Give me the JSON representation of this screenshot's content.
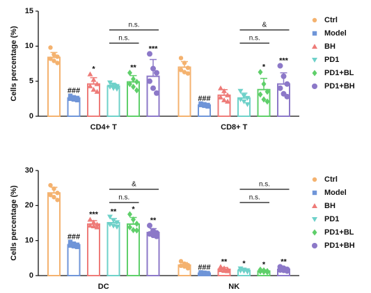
{
  "chart_data": [
    {
      "type": "bar",
      "ylabel": "Cells percentage (%)",
      "categories": [
        "CD4+ T",
        "CD8+ T"
      ],
      "ylim": [
        0,
        15
      ],
      "yticks": [
        0,
        5,
        10,
        15
      ],
      "legend": "right",
      "series": [
        {
          "name": "Ctrl",
          "color": "#f4b26f",
          "marker": "circle",
          "values": [
            8.4,
            7.0
          ],
          "errors": [
            0.7,
            0.8
          ],
          "points": [
            [
              9.8,
              8.8,
              8.5,
              8.2,
              7.9,
              7.6
            ],
            [
              8.3,
              7.6,
              6.9,
              6.6,
              6.3,
              6.1
            ]
          ],
          "significance": [
            null,
            null
          ]
        },
        {
          "name": "Model",
          "color": "#6f95d8",
          "marker": "square",
          "values": [
            2.6,
            1.6
          ],
          "errors": [
            0.2,
            0.1
          ],
          "points": [
            [
              2.9,
              2.7,
              2.6,
              2.5,
              2.4,
              2.3
            ],
            [
              1.8,
              1.7,
              1.6,
              1.6,
              1.5,
              1.4
            ]
          ],
          "significance": [
            "###",
            "###"
          ]
        },
        {
          "name": "BH",
          "color": "#ee7b78",
          "marker": "triangle-up",
          "values": [
            4.6,
            3.0
          ],
          "errors": [
            0.9,
            0.8
          ],
          "points": [
            [
              6.0,
              5.2,
              4.6,
              4.3,
              3.8,
              3.5
            ],
            [
              4.0,
              3.6,
              3.0,
              2.7,
              2.3,
              2.1
            ]
          ],
          "significance": [
            "*",
            null
          ]
        },
        {
          "name": "PD1",
          "color": "#6ed1c9",
          "marker": "triangle-down",
          "values": [
            4.3,
            2.6
          ],
          "errors": [
            0.3,
            0.7
          ],
          "points": [
            [
              4.8,
              4.5,
              4.3,
              4.2,
              4.0,
              3.9
            ],
            [
              3.6,
              2.9,
              2.6,
              2.4,
              2.1,
              1.7
            ]
          ],
          "significance": [
            null,
            null
          ]
        },
        {
          "name": "PD1+BL",
          "color": "#5fcf6a",
          "marker": "diamond",
          "values": [
            4.9,
            3.8
          ],
          "errors": [
            0.9,
            1.6
          ],
          "points": [
            [
              6.2,
              5.3,
              4.9,
              4.6,
              4.2,
              3.7
            ],
            [
              6.3,
              4.6,
              3.5,
              3.1,
              2.4,
              2.1
            ]
          ],
          "significance": [
            "**",
            "*"
          ]
        },
        {
          "name": "PD1+BH",
          "color": "#8c78c8",
          "marker": "big-circle",
          "values": [
            5.7,
            4.6
          ],
          "errors": [
            2.4,
            1.6
          ],
          "points": [
            [
              8.9,
              6.8,
              6.2,
              5.0,
              4.0,
              3.3
            ],
            [
              7.2,
              5.7,
              4.6,
              4.0,
              3.2,
              2.8
            ]
          ],
          "significance": [
            "***",
            "***"
          ]
        }
      ],
      "brackets": [
        {
          "category": "CD4+ T",
          "between": [
            "PD1",
            "PD1+BL"
          ],
          "label": "n.s."
        },
        {
          "category": "CD4+ T",
          "between": [
            "PD1",
            "PD1+BH"
          ],
          "label": "n.s."
        },
        {
          "category": "CD8+ T",
          "between": [
            "PD1",
            "PD1+BL"
          ],
          "label": "n.s."
        },
        {
          "category": "CD8+ T",
          "between": [
            "PD1",
            "PD1+BH"
          ],
          "label": "&"
        }
      ]
    },
    {
      "type": "bar",
      "ylabel": "Cells percentage (%)",
      "categories": [
        "DC",
        "NK"
      ],
      "ylim": [
        0,
        30
      ],
      "yticks": [
        0,
        10,
        20,
        30
      ],
      "legend": "right",
      "series": [
        {
          "name": "Ctrl",
          "color": "#f4b26f",
          "marker": "circle",
          "values": [
            23.6,
            3.0
          ],
          "errors": [
            1.6,
            0.7
          ],
          "points": [
            [
              25.8,
              24.8,
              23.6,
              23.0,
              22.4,
              21.6
            ],
            [
              4.1,
              3.4,
              3.0,
              2.8,
              2.6,
              2.1
            ]
          ],
          "significance": [
            null,
            null
          ]
        },
        {
          "name": "Model",
          "color": "#6f95d8",
          "marker": "square",
          "values": [
            8.8,
            0.7
          ],
          "errors": [
            0.5,
            0.1
          ],
          "points": [
            [
              9.6,
              9.1,
              8.8,
              8.6,
              8.4,
              8.2
            ],
            [
              0.9,
              0.8,
              0.7,
              0.7,
              0.6,
              0.5
            ]
          ],
          "significance": [
            "###",
            "###"
          ]
        },
        {
          "name": "BH",
          "color": "#ee7b78",
          "marker": "triangle-up",
          "values": [
            14.7,
            1.8
          ],
          "errors": [
            1.0,
            0.5
          ],
          "points": [
            [
              16.0,
              15.2,
              14.6,
              14.3,
              14.1,
              13.8
            ],
            [
              2.5,
              2.1,
              1.8,
              1.6,
              1.4,
              1.3
            ]
          ],
          "significance": [
            "***",
            "**"
          ]
        },
        {
          "name": "PD1",
          "color": "#6ed1c9",
          "marker": "triangle-down",
          "values": [
            15.1,
            1.5
          ],
          "errors": [
            1.2,
            0.3
          ],
          "points": [
            [
              16.8,
              15.8,
              15.2,
              14.6,
              14.2,
              13.9
            ],
            [
              2.0,
              1.7,
              1.5,
              1.4,
              1.3,
              1.1
            ]
          ],
          "significance": [
            "**",
            "*"
          ]
        },
        {
          "name": "PD1+BL",
          "color": "#5fcf6a",
          "marker": "diamond",
          "values": [
            14.7,
            1.3
          ],
          "errors": [
            1.9,
            0.3
          ],
          "points": [
            [
              17.5,
              16.0,
              14.8,
              13.8,
              13.0,
              12.9
            ],
            [
              1.7,
              1.5,
              1.3,
              1.2,
              1.1,
              1.0
            ]
          ],
          "significance": [
            "*",
            "*"
          ]
        },
        {
          "name": "PD1+BH",
          "color": "#8c78c8",
          "marker": "big-circle",
          "values": [
            12.3,
            1.8
          ],
          "errors": [
            1.1,
            0.4
          ],
          "points": [
            [
              14.3,
              12.8,
              12.2,
              11.9,
              11.5,
              11.2
            ],
            [
              2.5,
              2.1,
              1.8,
              1.6,
              1.5,
              1.3
            ]
          ],
          "significance": [
            "**",
            "**"
          ]
        }
      ],
      "brackets": [
        {
          "category": "DC",
          "between": [
            "PD1",
            "PD1+BL"
          ],
          "label": "n.s."
        },
        {
          "category": "DC",
          "between": [
            "PD1",
            "PD1+BH"
          ],
          "label": "&"
        },
        {
          "category": "NK",
          "between": [
            "PD1",
            "PD1+BL"
          ],
          "label": "n.s."
        },
        {
          "category": "NK",
          "between": [
            "PD1",
            "PD1+BH"
          ],
          "label": "n.s."
        }
      ]
    }
  ]
}
